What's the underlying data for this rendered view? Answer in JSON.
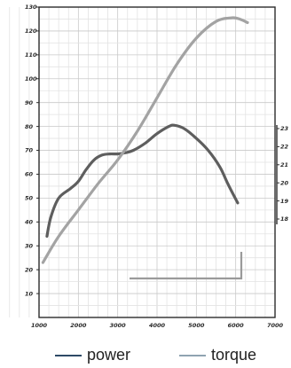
{
  "chart_data": {
    "type": "line",
    "x_ticks": [
      "1000",
      "2000",
      "3000",
      "4000",
      "5000",
      "6000",
      "7000"
    ],
    "y_left_ticks": [
      "10",
      "20",
      "30",
      "40",
      "50",
      "60",
      "70",
      "80",
      "90",
      "100",
      "110",
      "120",
      "130"
    ],
    "y_right_ticks": [
      "18",
      "19",
      "20",
      "21",
      "22",
      "23"
    ],
    "xlim": [
      1000,
      7000
    ],
    "ylim": [
      0,
      130
    ],
    "grid": true,
    "series": [
      {
        "name": "power",
        "color": "#5e5e5e",
        "points": [
          [
            1200,
            34
          ],
          [
            1300,
            42
          ],
          [
            1500,
            50
          ],
          [
            1800,
            54
          ],
          [
            2000,
            57
          ],
          [
            2200,
            62
          ],
          [
            2400,
            66
          ],
          [
            2600,
            68
          ],
          [
            2800,
            68.5
          ],
          [
            3000,
            68.5
          ],
          [
            3200,
            69
          ],
          [
            3400,
            70
          ],
          [
            3700,
            73
          ],
          [
            4000,
            77
          ],
          [
            4300,
            80
          ],
          [
            4450,
            80.5
          ],
          [
            4700,
            79
          ],
          [
            5000,
            75
          ],
          [
            5300,
            70
          ],
          [
            5600,
            63
          ],
          [
            5800,
            56
          ],
          [
            6050,
            48
          ]
        ]
      },
      {
        "name": "torque",
        "color": "#a3a3a3",
        "points": [
          [
            1100,
            23
          ],
          [
            1500,
            34
          ],
          [
            2000,
            45
          ],
          [
            2500,
            56
          ],
          [
            3000,
            66
          ],
          [
            3500,
            78
          ],
          [
            4000,
            92
          ],
          [
            4500,
            106
          ],
          [
            5000,
            117
          ],
          [
            5500,
            124
          ],
          [
            5900,
            125.5
          ],
          [
            6100,
            125
          ],
          [
            6300,
            123.5
          ]
        ]
      }
    ]
  },
  "legend": {
    "power_label": "power",
    "torque_label": "torque",
    "power_color": "#2d4a66",
    "torque_color": "#8fa3b1"
  }
}
